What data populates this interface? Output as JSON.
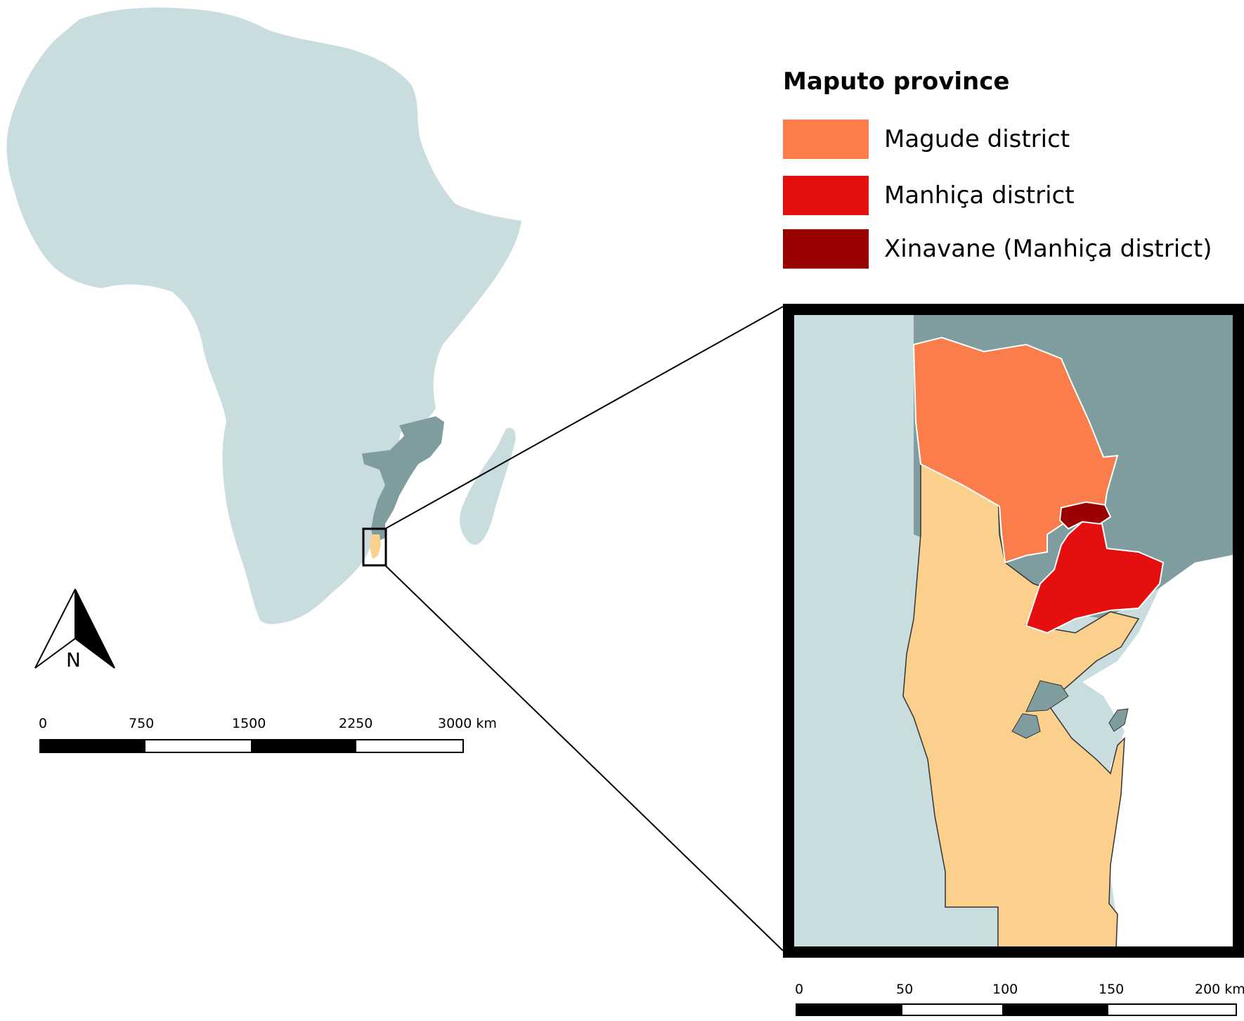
{
  "legend": {
    "title": "Maputo province",
    "items": [
      {
        "label": "Magude district",
        "color": "#fa7d4b"
      },
      {
        "label": "Manhiça district",
        "color": "#e60f0f"
      },
      {
        "label": "Xinavane (Manhiça district)",
        "color": "#990000"
      }
    ]
  },
  "colors": {
    "africa": "#c9dddf",
    "mozambique": "#7f9d9f",
    "province_other": "#fad08c",
    "water": "#c9dddf"
  },
  "north_arrow": {
    "label": "N"
  },
  "scale_africa": {
    "labels": [
      "0",
      "750",
      "1500",
      "2250",
      "3000 km"
    ]
  },
  "scale_inset": {
    "labels": [
      "0",
      "50",
      "100",
      "150",
      "200 km"
    ]
  }
}
